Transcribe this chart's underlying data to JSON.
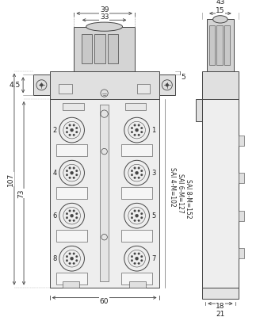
{
  "fig_width": 3.52,
  "fig_height": 4.0,
  "dpi": 100,
  "line_color": "#444444",
  "line_width": 0.7,
  "bg_color": "#ffffff",
  "fill_body": "#eeeeee",
  "fill_mount": "#e0e0e0",
  "fill_conn": "#d4d4d4",
  "fill_strip": "#f5f5f5",
  "dims": {
    "sai4": "SAI 4-M=102",
    "sai6": "SAI 6-M=127",
    "sai8": "SAI 8-M=152"
  }
}
